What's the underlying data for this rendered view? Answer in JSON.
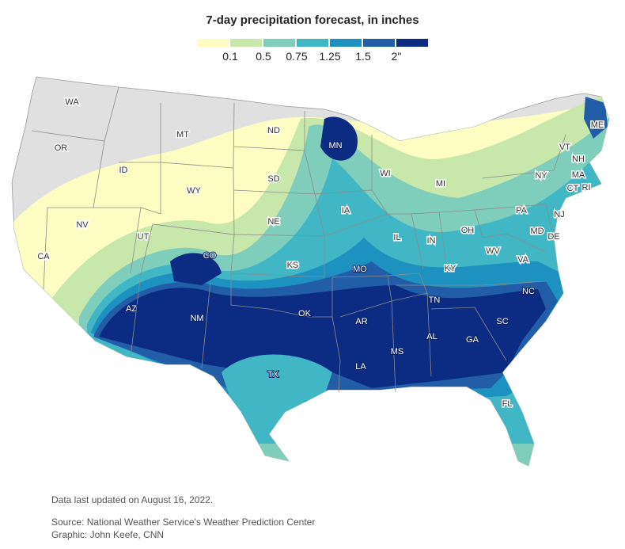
{
  "title": "7-day precipitation forecast, in inches",
  "legend": {
    "colors": [
      "#fcfcc3",
      "#c8e7ab",
      "#7fcdbb",
      "#41b6c4",
      "#1d91c0",
      "#225ea8",
      "#0c2c84"
    ],
    "ticks": [
      "0.1",
      "0.5",
      "0.75",
      "1.25",
      "1.5",
      "2\""
    ]
  },
  "no_data_color": "#e0e0e0",
  "states": [
    "WA",
    "OR",
    "CA",
    "ID",
    "NV",
    "MT",
    "WY",
    "UT",
    "AZ",
    "CO",
    "NM",
    "ND",
    "SD",
    "NE",
    "KS",
    "OK",
    "TX",
    "MN",
    "IA",
    "MO",
    "AR",
    "LA",
    "WI",
    "IL",
    "MI",
    "IN",
    "OH",
    "KY",
    "TN",
    "MS",
    "AL",
    "GA",
    "FL",
    "SC",
    "NC",
    "VA",
    "WV",
    "MD",
    "DE",
    "PA",
    "NJ",
    "NY",
    "CT",
    "RI",
    "MA",
    "VT",
    "NH",
    "ME"
  ],
  "footer": {
    "updated": "Data last updated on August 16, 2022.",
    "source": "Source: National Weather Service's Weather Prediction Center",
    "graphic": "Graphic: John Keefe, CNN"
  }
}
